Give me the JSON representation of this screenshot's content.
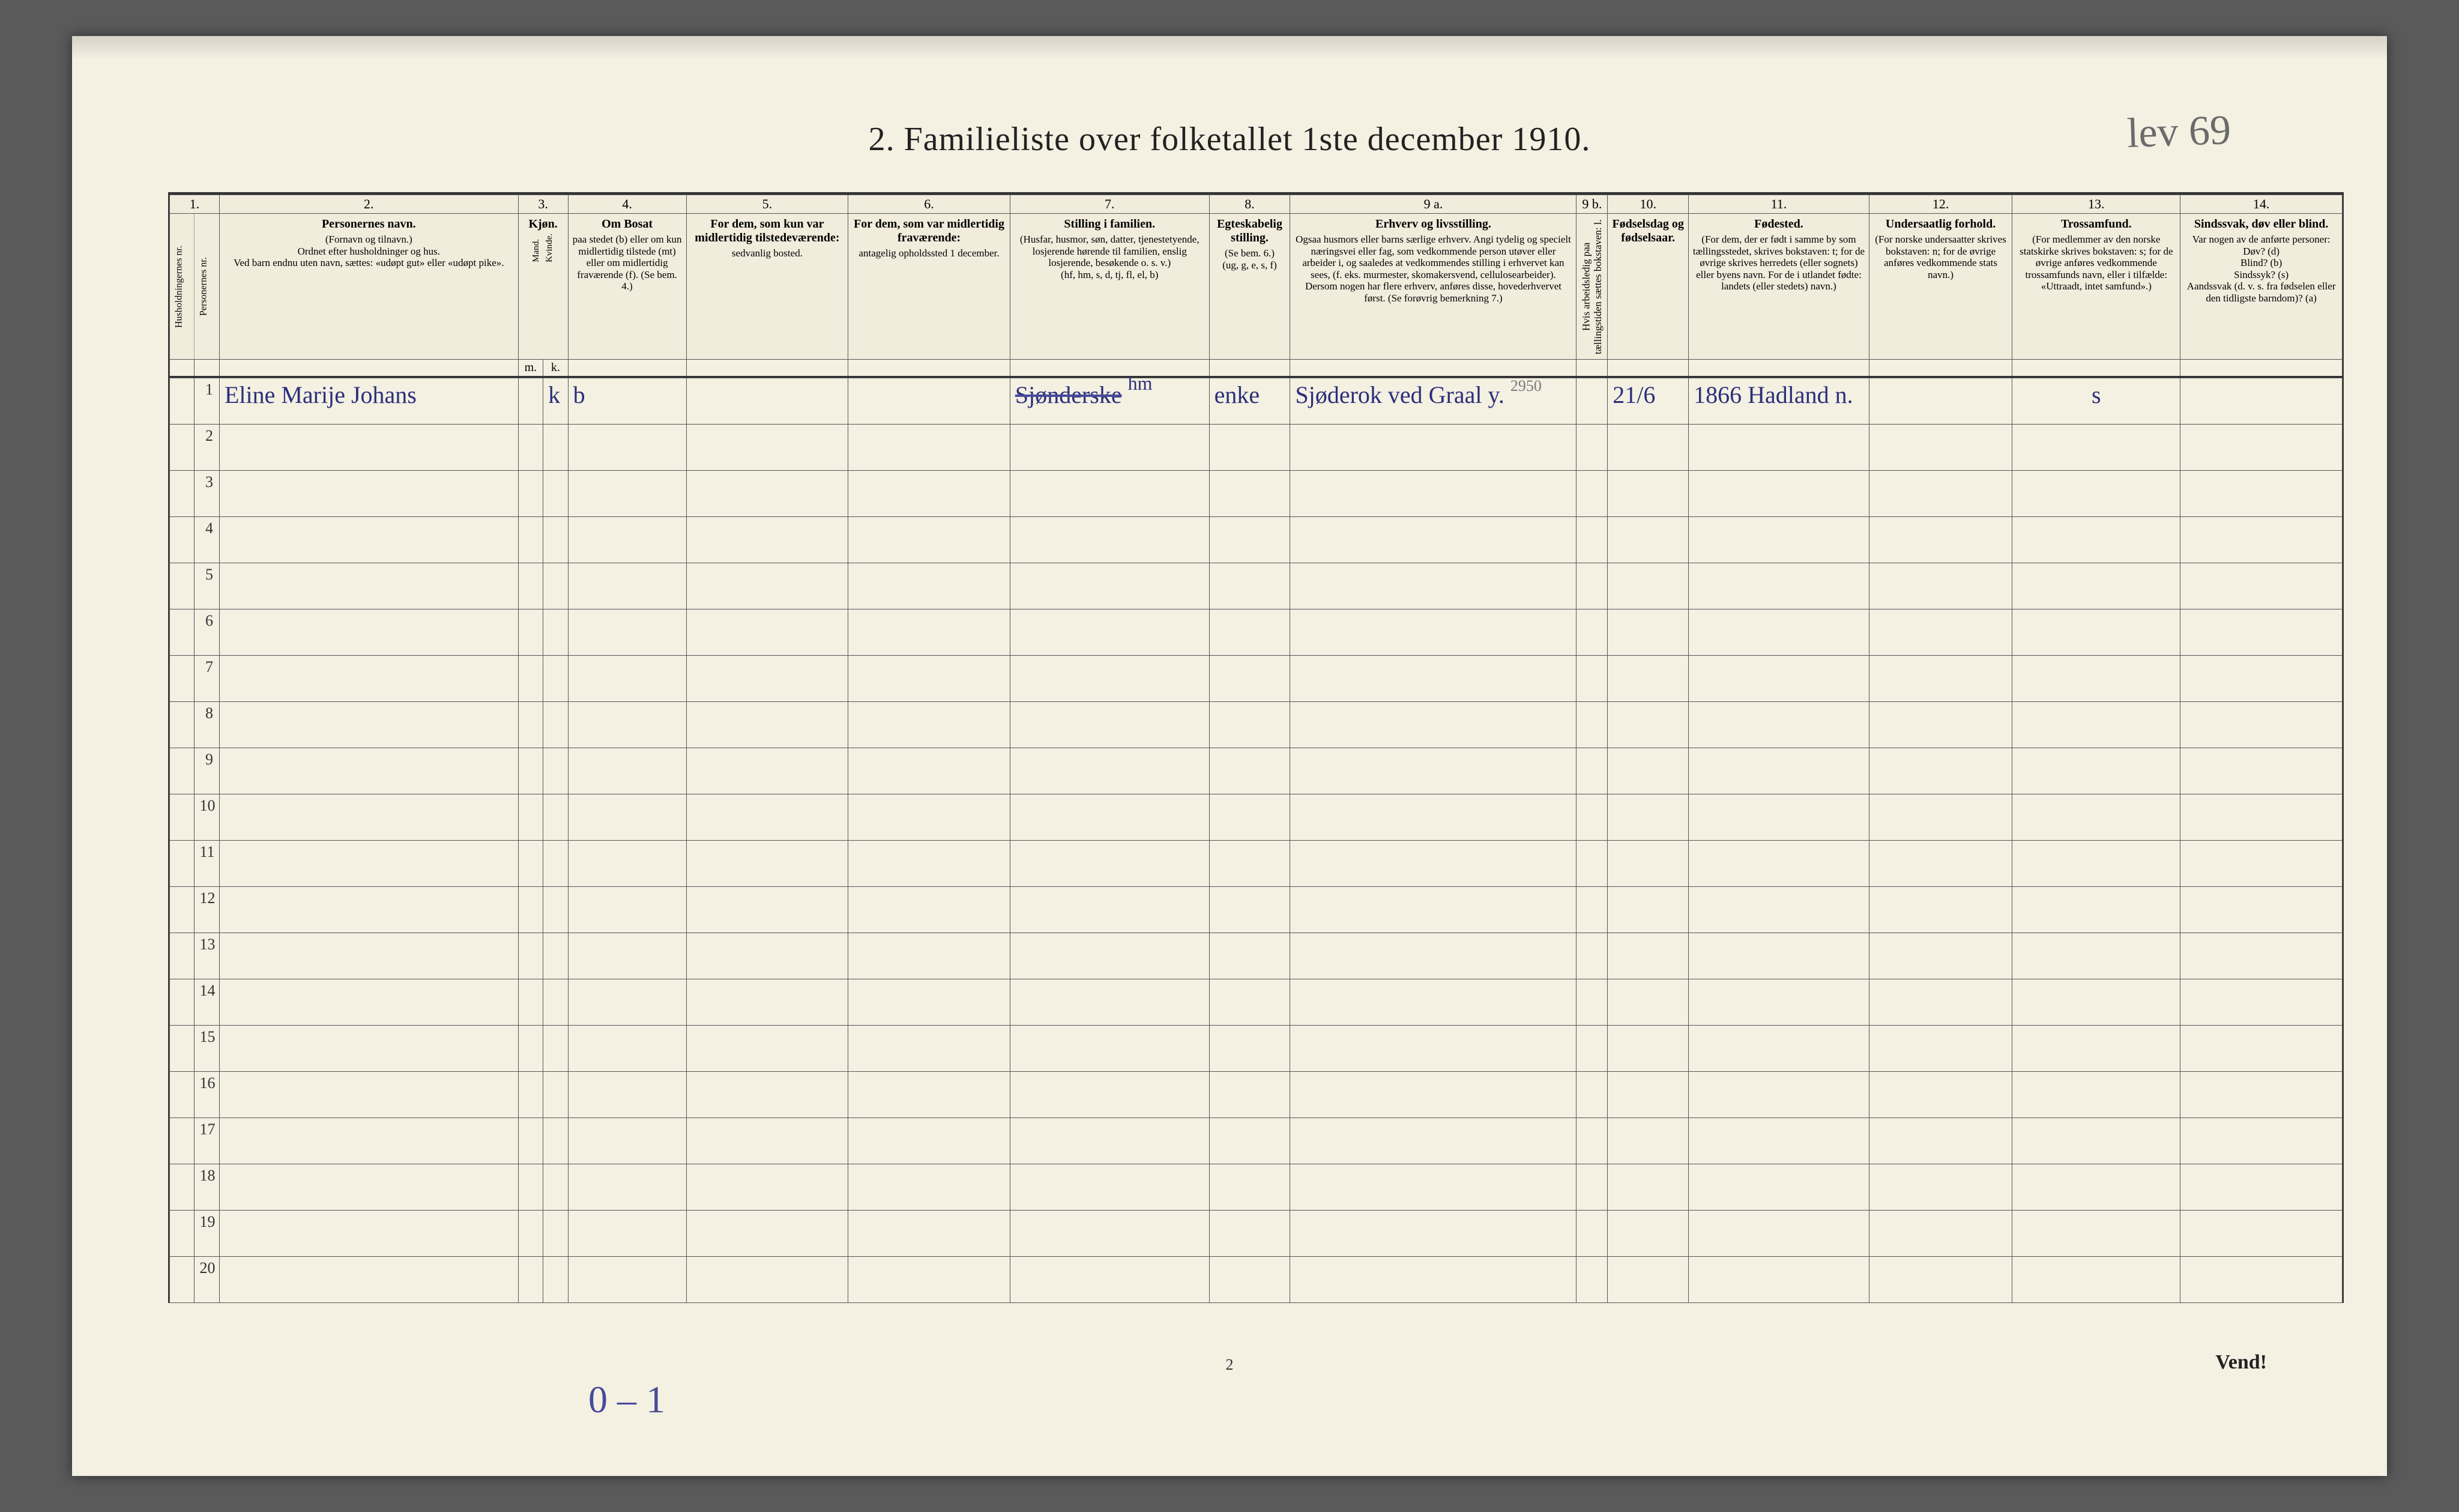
{
  "title": "2.  Familieliste over folketallet 1ste december 1910.",
  "annotation_topright": "lev 69",
  "annotation_bottom": "0 – 1",
  "footer_page": "2",
  "footer_vend": "Vend!",
  "colnums": [
    "1.",
    "2.",
    "3.",
    "4.",
    "5.",
    "6.",
    "7.",
    "8.",
    "9 a.",
    "9 b.",
    "10.",
    "11.",
    "12.",
    "13.",
    "14."
  ],
  "headers": {
    "c1a": "Husholdningernes nr.",
    "c1b": "Personernes nr.",
    "c2": {
      "title": "Personernes navn.",
      "sub": "(Fornavn og tilnavn.)\nOrdnet efter husholdninger og hus.\nVed barn endnu uten navn, sættes: «udøpt gut» eller «udøpt pike»."
    },
    "c3": {
      "title": "Kjøn.",
      "m": "m.",
      "k": "k.",
      "sub_m": "Mand.",
      "sub_k": "Kvinde."
    },
    "c4": {
      "title": "Om Bosat",
      "sub": "paa stedet (b) eller om kun midlertidig tilstede (mt) eller om midlertidig fraværende (f). (Se bem. 4.)"
    },
    "c5": {
      "title": "For dem, som kun var midlertidig tilstedeværende:",
      "sub": "sedvanlig bosted."
    },
    "c6": {
      "title": "For dem, som var midlertidig fraværende:",
      "sub": "antagelig opholdssted 1 december."
    },
    "c7": {
      "title": "Stilling i familien.",
      "sub": "(Husfar, husmor, søn, datter, tjenestetyende, losjerende hørende til familien, enslig losjerende, besøkende o. s. v.)\n(hf, hm, s, d, tj, fl, el, b)"
    },
    "c8": {
      "title": "Egteskabelig stilling.",
      "sub": "(Se bem. 6.)\n(ug, g, e, s, f)"
    },
    "c9a": {
      "title": "Erhverv og livsstilling.",
      "sub": "Ogsaa husmors eller barns særlige erhverv. Angi tydelig og specielt næringsvei eller fag, som vedkommende person utøver eller arbeider i, og saaledes at vedkommendes stilling i erhvervet kan sees, (f. eks. murmester, skomakersvend, cellulosearbeider). Dersom nogen har flere erhverv, anføres disse, hovederhvervet først. (Se forøvrig bemerkning 7.)"
    },
    "c9b": {
      "sub": "Hvis arbeidsledig paa tællingstiden sættes bokstaven: l."
    },
    "c10": {
      "title": "Fødselsdag og fødselsaar."
    },
    "c11": {
      "title": "Fødested.",
      "sub": "(For dem, der er født i samme by som tællingsstedet, skrives bokstaven: t; for de øvrige skrives herredets (eller sognets) eller byens navn. For de i utlandet fødte: landets (eller stedets) navn.)"
    },
    "c12": {
      "title": "Undersaatlig forhold.",
      "sub": "(For norske undersaatter skrives bokstaven: n; for de øvrige anføres vedkommende stats navn.)"
    },
    "c13": {
      "title": "Trossamfund.",
      "sub": "(For medlemmer av den norske statskirke skrives bokstaven: s; for de øvrige anføres vedkommende trossamfunds navn, eller i tilfælde: «Uttraadt, intet samfund».)"
    },
    "c14": {
      "title": "Sindssvak, døv eller blind.",
      "sub": "Var nogen av de anførte personer:\nDøv? (d)\nBlind? (b)\nSindssyk? (s)\nAandssvak (d. v. s. fra fødselen eller den tidligste barndom)? (a)"
    }
  },
  "row_numbers": [
    "1",
    "2",
    "3",
    "4",
    "5",
    "6",
    "7",
    "8",
    "9",
    "10",
    "11",
    "12",
    "13",
    "14",
    "15",
    "16",
    "17",
    "18",
    "19",
    "20"
  ],
  "data_rows": [
    {
      "c2": "Eline Marije Johans",
      "c3k": "k",
      "c4": "b",
      "c7": "hm",
      "c7_struck": "Sjønderske",
      "c8": "enke",
      "c9a": "Sjøderok ved Graal y.",
      "c9a_note": "2950",
      "c10": "21/6",
      "c11": "1866  Hadland n.",
      "c13": "s"
    }
  ],
  "colors": {
    "paper": "#f4f0e2",
    "header_bg": "#f1ecdc",
    "line": "#555555",
    "print_text": "#222222",
    "ink_pen": "#2b2f7a",
    "pencil": "#6b6b6b"
  }
}
